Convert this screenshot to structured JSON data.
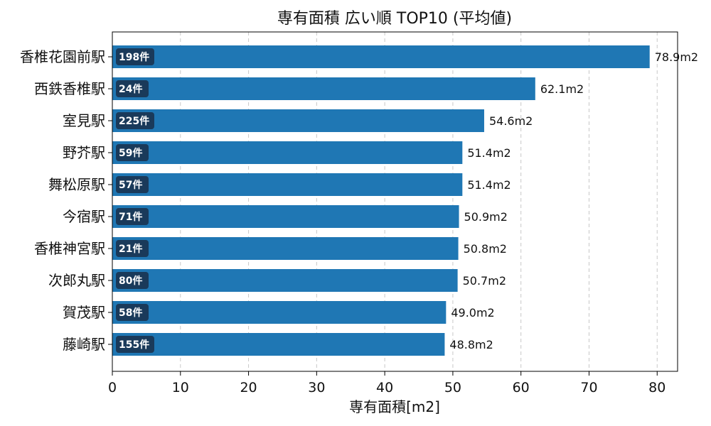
{
  "chart_data": {
    "type": "bar",
    "orientation": "horizontal",
    "title": "専有面積 広い順 TOP10 (平均値)",
    "xlabel": "専有面積[m2]",
    "ylabel": "",
    "xlim": [
      0,
      83
    ],
    "xticks": [
      0,
      10,
      20,
      30,
      40,
      50,
      60,
      70,
      80
    ],
    "grid": "x-dashed",
    "bar_color": "#1f77b4",
    "badge_color": "#1a3a5a",
    "categories": [
      "香椎花園前駅",
      "西鉄香椎駅",
      "室見駅",
      "野芥駅",
      "舞松原駅",
      "今宿駅",
      "香椎神宮駅",
      "次郎丸駅",
      "賀茂駅",
      "藤崎駅"
    ],
    "values": [
      78.9,
      62.1,
      54.6,
      51.4,
      51.4,
      50.9,
      50.8,
      50.7,
      49.0,
      48.8
    ],
    "value_labels": [
      "78.9m2",
      "62.1m2",
      "54.6m2",
      "51.4m2",
      "51.4m2",
      "50.9m2",
      "50.8m2",
      "50.7m2",
      "49.0m2",
      "48.8m2"
    ],
    "count_labels": [
      "198件",
      "24件",
      "225件",
      "59件",
      "57件",
      "71件",
      "21件",
      "80件",
      "58件",
      "155件"
    ]
  }
}
